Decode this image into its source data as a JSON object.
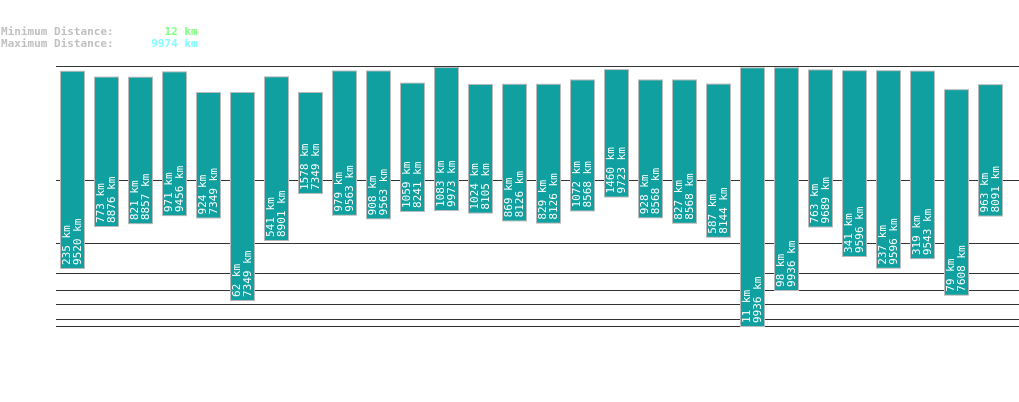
{
  "header": {
    "min_label": "Minimum Distance:",
    "min_value": "12 km",
    "max_label": "Maximum Distance:",
    "max_value": "9974 km",
    "min_color": "#80ff80",
    "max_color": "#80ffff"
  },
  "chart_data": {
    "type": "bar",
    "subtype": "floating-range",
    "orientation": "vertical, inverted (larger distance toward the top)",
    "unit": "km",
    "bar_color": "#11a0a0",
    "grid": true,
    "series": [
      {
        "min": 235,
        "max": 9520
      },
      {
        "min": 773,
        "max": 8876
      },
      {
        "min": 821,
        "max": 8857
      },
      {
        "min": 971,
        "max": 9456
      },
      {
        "min": 924,
        "max": 7349
      },
      {
        "min": 62,
        "max": 7349
      },
      {
        "min": 541,
        "max": 8901
      },
      {
        "min": 1578,
        "max": 7349
      },
      {
        "min": 979,
        "max": 9563
      },
      {
        "min": 908,
        "max": 9563
      },
      {
        "min": 1059,
        "max": 8241
      },
      {
        "min": 1083,
        "max": 9973
      },
      {
        "min": 1024,
        "max": 8105
      },
      {
        "min": 869,
        "max": 8126
      },
      {
        "min": 829,
        "max": 8126
      },
      {
        "min": 1072,
        "max": 8568
      },
      {
        "min": 1460,
        "max": 9723
      },
      {
        "min": 928,
        "max": 8568
      },
      {
        "min": 827,
        "max": 8568
      },
      {
        "min": 587,
        "max": 8144
      },
      {
        "min": 11,
        "max": 9936
      },
      {
        "min": 98,
        "max": 9936
      },
      {
        "min": 763,
        "max": 9689
      },
      {
        "min": 341,
        "max": 9596
      },
      {
        "min": 237,
        "max": 9596
      },
      {
        "min": 319,
        "max": 9543
      },
      {
        "min": 79,
        "max": 7608
      },
      {
        "min": 963,
        "max": 8091
      }
    ]
  }
}
